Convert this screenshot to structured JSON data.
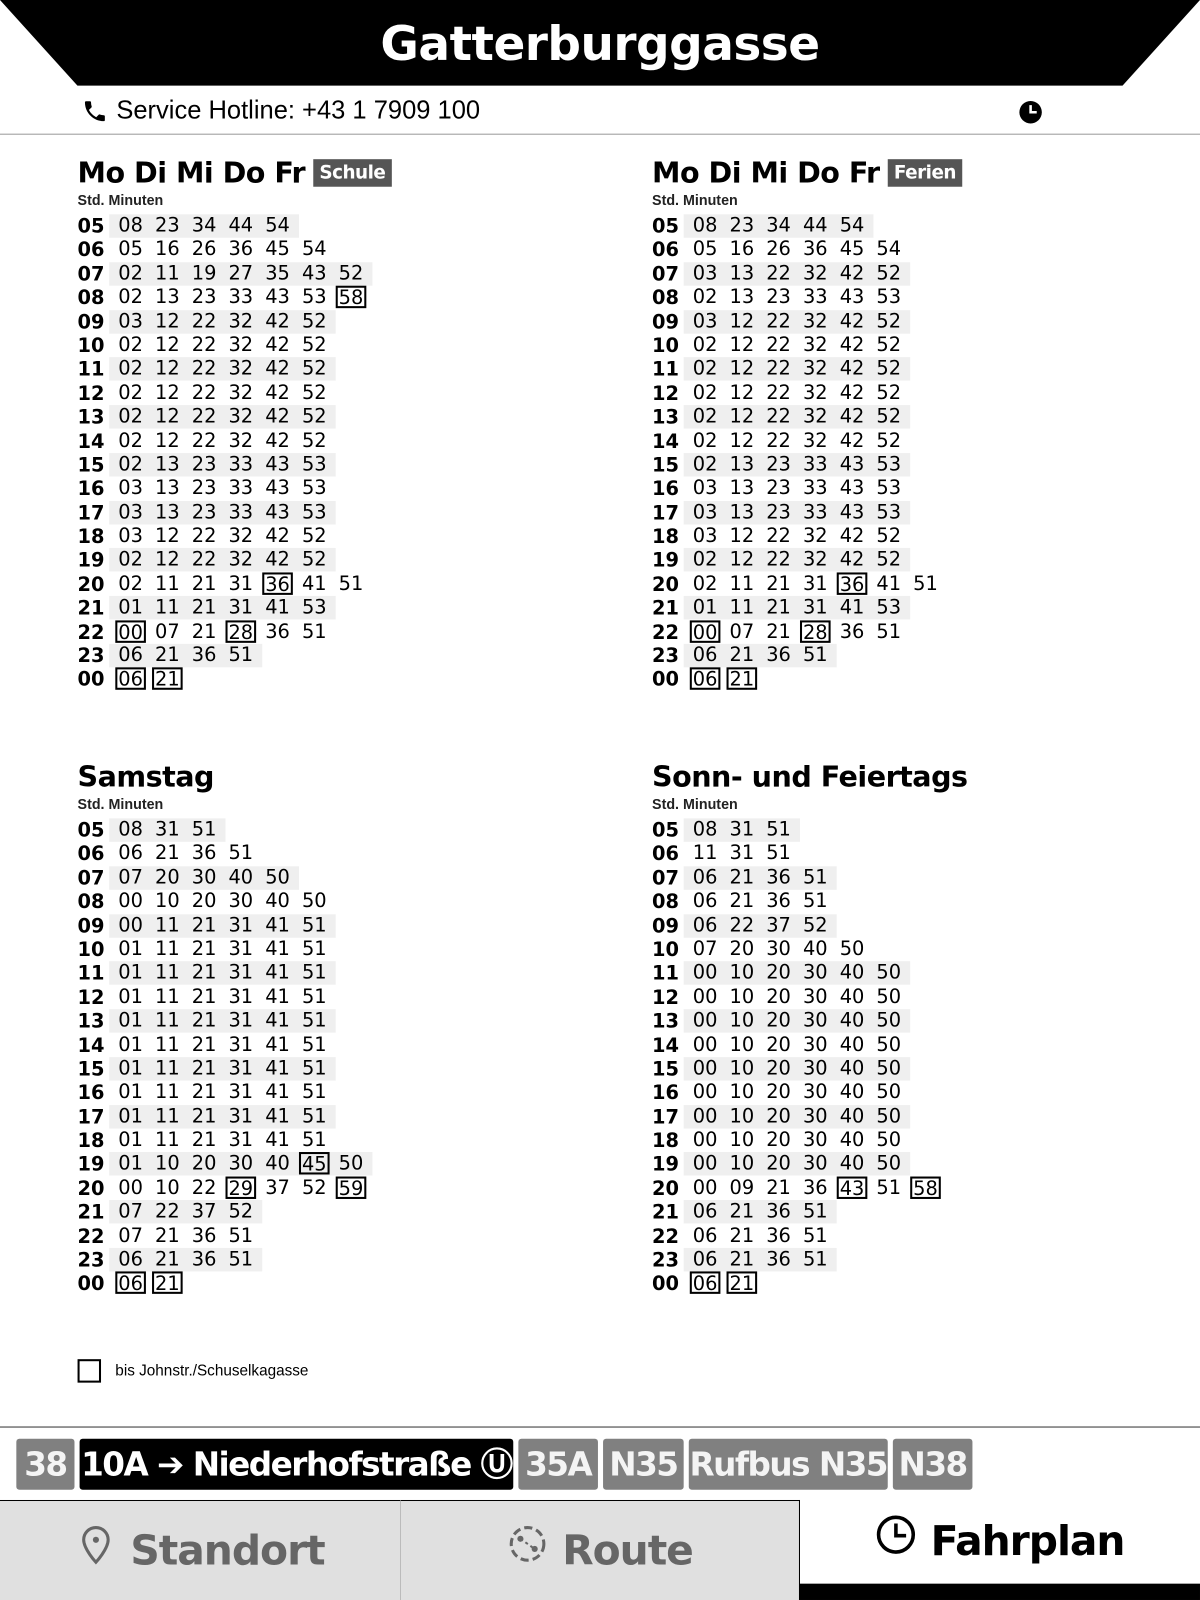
{
  "header": {
    "title": "Gatterburggasse",
    "hotline": "Service Hotline: +43 1 7909 100"
  },
  "columns_label": "Std. Minuten",
  "sections": [
    {
      "title": "Mo Di Mi Do Fr",
      "badge": "Schule",
      "rows": [
        {
          "h": "05",
          "m": [
            "08",
            "23",
            "34",
            "44",
            "54"
          ]
        },
        {
          "h": "06",
          "m": [
            "05",
            "16",
            "26",
            "36",
            "45",
            "54"
          ]
        },
        {
          "h": "07",
          "m": [
            "02",
            "11",
            "19",
            "27",
            "35",
            "43",
            "52"
          ]
        },
        {
          "h": "08",
          "m": [
            "02",
            "13",
            "23",
            "33",
            "43",
            "53",
            "58"
          ],
          "x": [
            6
          ]
        },
        {
          "h": "09",
          "m": [
            "03",
            "12",
            "22",
            "32",
            "42",
            "52"
          ]
        },
        {
          "h": "10",
          "m": [
            "02",
            "12",
            "22",
            "32",
            "42",
            "52"
          ]
        },
        {
          "h": "11",
          "m": [
            "02",
            "12",
            "22",
            "32",
            "42",
            "52"
          ]
        },
        {
          "h": "12",
          "m": [
            "02",
            "12",
            "22",
            "32",
            "42",
            "52"
          ]
        },
        {
          "h": "13",
          "m": [
            "02",
            "12",
            "22",
            "32",
            "42",
            "52"
          ]
        },
        {
          "h": "14",
          "m": [
            "02",
            "12",
            "22",
            "32",
            "42",
            "52"
          ]
        },
        {
          "h": "15",
          "m": [
            "02",
            "13",
            "23",
            "33",
            "43",
            "53"
          ]
        },
        {
          "h": "16",
          "m": [
            "03",
            "13",
            "23",
            "33",
            "43",
            "53"
          ]
        },
        {
          "h": "17",
          "m": [
            "03",
            "13",
            "23",
            "33",
            "43",
            "53"
          ]
        },
        {
          "h": "18",
          "m": [
            "03",
            "12",
            "22",
            "32",
            "42",
            "52"
          ]
        },
        {
          "h": "19",
          "m": [
            "02",
            "12",
            "22",
            "32",
            "42",
            "52"
          ]
        },
        {
          "h": "20",
          "m": [
            "02",
            "11",
            "21",
            "31",
            "36",
            "41",
            "51"
          ],
          "x": [
            4
          ]
        },
        {
          "h": "21",
          "m": [
            "01",
            "11",
            "21",
            "31",
            "41",
            "53"
          ]
        },
        {
          "h": "22",
          "m": [
            "00",
            "07",
            "21",
            "28",
            "36",
            "51"
          ],
          "x": [
            0,
            3
          ]
        },
        {
          "h": "23",
          "m": [
            "06",
            "21",
            "36",
            "51"
          ]
        },
        {
          "h": "00",
          "m": [
            "06",
            "21"
          ],
          "x": [
            0,
            1
          ]
        }
      ]
    },
    {
      "title": "Mo Di Mi Do Fr",
      "badge": "Ferien",
      "rows": [
        {
          "h": "05",
          "m": [
            "08",
            "23",
            "34",
            "44",
            "54"
          ]
        },
        {
          "h": "06",
          "m": [
            "05",
            "16",
            "26",
            "36",
            "45",
            "54"
          ]
        },
        {
          "h": "07",
          "m": [
            "03",
            "13",
            "22",
            "32",
            "42",
            "52"
          ]
        },
        {
          "h": "08",
          "m": [
            "02",
            "13",
            "23",
            "33",
            "43",
            "53"
          ]
        },
        {
          "h": "09",
          "m": [
            "03",
            "12",
            "22",
            "32",
            "42",
            "52"
          ]
        },
        {
          "h": "10",
          "m": [
            "02",
            "12",
            "22",
            "32",
            "42",
            "52"
          ]
        },
        {
          "h": "11",
          "m": [
            "02",
            "12",
            "22",
            "32",
            "42",
            "52"
          ]
        },
        {
          "h": "12",
          "m": [
            "02",
            "12",
            "22",
            "32",
            "42",
            "52"
          ]
        },
        {
          "h": "13",
          "m": [
            "02",
            "12",
            "22",
            "32",
            "42",
            "52"
          ]
        },
        {
          "h": "14",
          "m": [
            "02",
            "12",
            "22",
            "32",
            "42",
            "52"
          ]
        },
        {
          "h": "15",
          "m": [
            "02",
            "13",
            "23",
            "33",
            "43",
            "53"
          ]
        },
        {
          "h": "16",
          "m": [
            "03",
            "13",
            "23",
            "33",
            "43",
            "53"
          ]
        },
        {
          "h": "17",
          "m": [
            "03",
            "13",
            "23",
            "33",
            "43",
            "53"
          ]
        },
        {
          "h": "18",
          "m": [
            "03",
            "12",
            "22",
            "32",
            "42",
            "52"
          ]
        },
        {
          "h": "19",
          "m": [
            "02",
            "12",
            "22",
            "32",
            "42",
            "52"
          ]
        },
        {
          "h": "20",
          "m": [
            "02",
            "11",
            "21",
            "31",
            "36",
            "41",
            "51"
          ],
          "x": [
            4
          ]
        },
        {
          "h": "21",
          "m": [
            "01",
            "11",
            "21",
            "31",
            "41",
            "53"
          ]
        },
        {
          "h": "22",
          "m": [
            "00",
            "07",
            "21",
            "28",
            "36",
            "51"
          ],
          "x": [
            0,
            3
          ]
        },
        {
          "h": "23",
          "m": [
            "06",
            "21",
            "36",
            "51"
          ]
        },
        {
          "h": "00",
          "m": [
            "06",
            "21"
          ],
          "x": [
            0,
            1
          ]
        }
      ]
    },
    {
      "title": "Samstag",
      "badge": "",
      "rows": [
        {
          "h": "05",
          "m": [
            "08",
            "31",
            "51"
          ]
        },
        {
          "h": "06",
          "m": [
            "06",
            "21",
            "36",
            "51"
          ]
        },
        {
          "h": "07",
          "m": [
            "07",
            "20",
            "30",
            "40",
            "50"
          ]
        },
        {
          "h": "08",
          "m": [
            "00",
            "10",
            "20",
            "30",
            "40",
            "50"
          ]
        },
        {
          "h": "09",
          "m": [
            "00",
            "11",
            "21",
            "31",
            "41",
            "51"
          ]
        },
        {
          "h": "10",
          "m": [
            "01",
            "11",
            "21",
            "31",
            "41",
            "51"
          ]
        },
        {
          "h": "11",
          "m": [
            "01",
            "11",
            "21",
            "31",
            "41",
            "51"
          ]
        },
        {
          "h": "12",
          "m": [
            "01",
            "11",
            "21",
            "31",
            "41",
            "51"
          ]
        },
        {
          "h": "13",
          "m": [
            "01",
            "11",
            "21",
            "31",
            "41",
            "51"
          ]
        },
        {
          "h": "14",
          "m": [
            "01",
            "11",
            "21",
            "31",
            "41",
            "51"
          ]
        },
        {
          "h": "15",
          "m": [
            "01",
            "11",
            "21",
            "31",
            "41",
            "51"
          ]
        },
        {
          "h": "16",
          "m": [
            "01",
            "11",
            "21",
            "31",
            "41",
            "51"
          ]
        },
        {
          "h": "17",
          "m": [
            "01",
            "11",
            "21",
            "31",
            "41",
            "51"
          ]
        },
        {
          "h": "18",
          "m": [
            "01",
            "11",
            "21",
            "31",
            "41",
            "51"
          ]
        },
        {
          "h": "19",
          "m": [
            "01",
            "10",
            "20",
            "30",
            "40",
            "45",
            "50"
          ],
          "x": [
            5
          ]
        },
        {
          "h": "20",
          "m": [
            "00",
            "10",
            "22",
            "29",
            "37",
            "52",
            "59"
          ],
          "x": [
            3,
            6
          ]
        },
        {
          "h": "21",
          "m": [
            "07",
            "22",
            "37",
            "52"
          ]
        },
        {
          "h": "22",
          "m": [
            "07",
            "21",
            "36",
            "51"
          ]
        },
        {
          "h": "23",
          "m": [
            "06",
            "21",
            "36",
            "51"
          ]
        },
        {
          "h": "00",
          "m": [
            "06",
            "21"
          ],
          "x": [
            0,
            1
          ]
        }
      ]
    },
    {
      "title": "Sonn- und Feiertags",
      "badge": "",
      "rows": [
        {
          "h": "05",
          "m": [
            "08",
            "31",
            "51"
          ]
        },
        {
          "h": "06",
          "m": [
            "11",
            "31",
            "51"
          ]
        },
        {
          "h": "07",
          "m": [
            "06",
            "21",
            "36",
            "51"
          ]
        },
        {
          "h": "08",
          "m": [
            "06",
            "21",
            "36",
            "51"
          ]
        },
        {
          "h": "09",
          "m": [
            "06",
            "22",
            "37",
            "52"
          ]
        },
        {
          "h": "10",
          "m": [
            "07",
            "20",
            "30",
            "40",
            "50"
          ]
        },
        {
          "h": "11",
          "m": [
            "00",
            "10",
            "20",
            "30",
            "40",
            "50"
          ]
        },
        {
          "h": "12",
          "m": [
            "00",
            "10",
            "20",
            "30",
            "40",
            "50"
          ]
        },
        {
          "h": "13",
          "m": [
            "00",
            "10",
            "20",
            "30",
            "40",
            "50"
          ]
        },
        {
          "h": "14",
          "m": [
            "00",
            "10",
            "20",
            "30",
            "40",
            "50"
          ]
        },
        {
          "h": "15",
          "m": [
            "00",
            "10",
            "20",
            "30",
            "40",
            "50"
          ]
        },
        {
          "h": "16",
          "m": [
            "00",
            "10",
            "20",
            "30",
            "40",
            "50"
          ]
        },
        {
          "h": "17",
          "m": [
            "00",
            "10",
            "20",
            "30",
            "40",
            "50"
          ]
        },
        {
          "h": "18",
          "m": [
            "00",
            "10",
            "20",
            "30",
            "40",
            "50"
          ]
        },
        {
          "h": "19",
          "m": [
            "00",
            "10",
            "20",
            "30",
            "40",
            "50"
          ]
        },
        {
          "h": "20",
          "m": [
            "00",
            "09",
            "21",
            "36",
            "43",
            "51",
            "58"
          ],
          "x": [
            4,
            6
          ]
        },
        {
          "h": "21",
          "m": [
            "06",
            "21",
            "36",
            "51"
          ]
        },
        {
          "h": "22",
          "m": [
            "06",
            "21",
            "36",
            "51"
          ]
        },
        {
          "h": "23",
          "m": [
            "06",
            "21",
            "36",
            "51"
          ]
        },
        {
          "h": "00",
          "m": [
            "06",
            "21"
          ],
          "x": [
            0,
            1
          ]
        }
      ]
    }
  ],
  "legend": {
    "boxed_meaning": "bis Johnstr./Schuselkagasse"
  },
  "routes": [
    {
      "label": "38"
    },
    {
      "label": "10A ➔ Niederhofstraße Ⓤ",
      "active": true
    },
    {
      "label": "35A"
    },
    {
      "label": "N35"
    },
    {
      "label": "Rufbus N35"
    },
    {
      "label": "N38"
    }
  ],
  "tabs": [
    {
      "label": "Standort",
      "icon": "location-pin-icon"
    },
    {
      "label": "Route",
      "icon": "route-icon"
    },
    {
      "label": "Fahrplan",
      "icon": "clock-icon",
      "active": true
    }
  ]
}
